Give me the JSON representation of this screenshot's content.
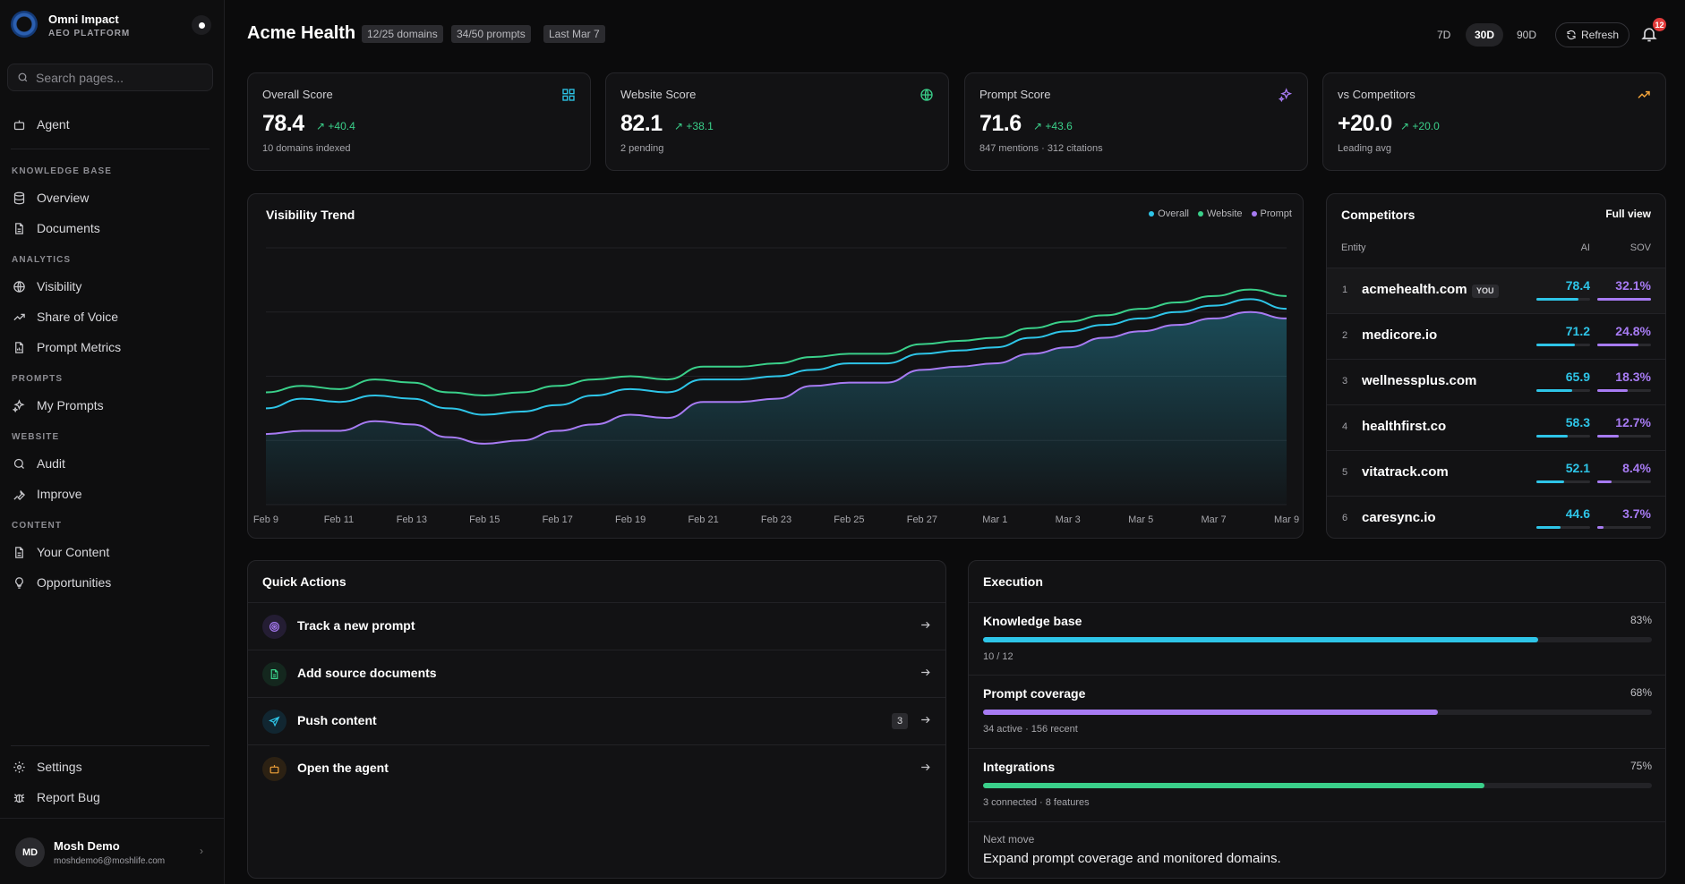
{
  "brand": {
    "name": "Omni Impact",
    "subtitle": "AEO PLATFORM"
  },
  "search": {
    "placeholder": "Search pages..."
  },
  "sidebar": {
    "agent": "Agent",
    "sections": {
      "knowledge_base": "KNOWLEDGE BASE",
      "analytics": "ANALYTICS",
      "prompts": "PROMPTS",
      "website": "WEBSITE",
      "content": "CONTENT"
    },
    "items": {
      "overview": "Overview",
      "documents": "Documents",
      "visibility": "Visibility",
      "share_of_voice": "Share of Voice",
      "prompt_metrics": "Prompt Metrics",
      "my_prompts": "My Prompts",
      "audit": "Audit",
      "improve": "Improve",
      "your_content": "Your Content",
      "opportunities": "Opportunities",
      "settings": "Settings",
      "report_bug": "Report Bug"
    }
  },
  "user": {
    "initials": "MD",
    "name": "Mosh Demo",
    "email": "moshdemo6@moshlife.com"
  },
  "header": {
    "title": "Acme Health",
    "chips": [
      "12/25 domains",
      "34/50 prompts",
      "Last Mar 7"
    ],
    "ranges": [
      "7D",
      "30D",
      "90D"
    ],
    "active_range": "30D",
    "refresh": "Refresh",
    "notifications": "12"
  },
  "stats": [
    {
      "label": "Overall Score",
      "value": "78.4",
      "delta": "+40.4",
      "sub": "10 domains indexed",
      "icon": "grid-icon",
      "color": "#2ec5e8"
    },
    {
      "label": "Website Score",
      "value": "82.1",
      "delta": "+38.1",
      "sub": "2 pending",
      "icon": "globe-icon",
      "color": "#3ad08a"
    },
    {
      "label": "Prompt Score",
      "value": "71.6",
      "delta": "+43.6",
      "sub": "847 mentions · 312 citations",
      "icon": "sparkles-icon",
      "color": "#a77bf3"
    },
    {
      "label": "vs Competitors",
      "value": "+20.0",
      "delta": "+20.0",
      "sub": "Leading avg",
      "icon": "trending-up-icon",
      "color": "#f2a33a"
    }
  ],
  "trend": {
    "title": "Visibility Trend",
    "legend": [
      "Overall",
      "Website",
      "Prompt"
    ]
  },
  "chart_data": {
    "type": "area",
    "x": [
      "Feb 9",
      "Feb 10",
      "Feb 11",
      "Feb 12",
      "Feb 13",
      "Feb 14",
      "Feb 15",
      "Feb 16",
      "Feb 17",
      "Feb 18",
      "Feb 19",
      "Feb 20",
      "Feb 21",
      "Feb 22",
      "Feb 23",
      "Feb 24",
      "Feb 25",
      "Feb 26",
      "Feb 27",
      "Feb 28",
      "Mar 1",
      "Mar 2",
      "Mar 3",
      "Mar 4",
      "Mar 5",
      "Mar 6",
      "Mar 7",
      "Mar 8",
      "Mar 9"
    ],
    "tick_labels": [
      "Feb 9",
      "Feb 11",
      "Feb 13",
      "Feb 15",
      "Feb 17",
      "Feb 19",
      "Feb 21",
      "Feb 23",
      "Feb 25",
      "Feb 27",
      "Mar 1",
      "Mar 3",
      "Mar 5",
      "Mar 7",
      "Mar 9"
    ],
    "ylim": [
      0,
      80
    ],
    "grid": true,
    "legend_position": "top-right",
    "series": [
      {
        "name": "Website",
        "color": "#3ad08a",
        "values": [
          35,
          37,
          36,
          39,
          38,
          35,
          34,
          35,
          37,
          39,
          40,
          39,
          43,
          43,
          44,
          46,
          47,
          47,
          50,
          51,
          52,
          55,
          57,
          59,
          61,
          63,
          65,
          67,
          65
        ]
      },
      {
        "name": "Overall",
        "color": "#2ec5e8",
        "values": [
          30,
          33,
          32,
          34,
          33,
          30,
          28,
          29,
          31,
          34,
          36,
          35,
          39,
          39,
          40,
          42,
          44,
          44,
          47,
          48,
          49,
          52,
          54,
          56,
          58,
          60,
          62,
          64,
          61
        ]
      },
      {
        "name": "Prompt",
        "color": "#a77bf3",
        "values": [
          22,
          23,
          23,
          26,
          25,
          21,
          19,
          20,
          23,
          25,
          28,
          27,
          32,
          32,
          33,
          37,
          38,
          38,
          42,
          43,
          44,
          47,
          49,
          52,
          54,
          56,
          58,
          60,
          58
        ]
      }
    ]
  },
  "competitors": {
    "title": "Competitors",
    "full_view": "Full view",
    "headers": {
      "entity": "Entity",
      "ai": "AI",
      "sov": "SOV"
    },
    "you_label": "YOU",
    "rows": [
      {
        "rank": "1",
        "name": "acmehealth.com",
        "ai": "78.4",
        "sov": "32.1%",
        "ai_val": 78.4,
        "sov_val": 32.1,
        "you": true
      },
      {
        "rank": "2",
        "name": "medicore.io",
        "ai": "71.2",
        "sov": "24.8%",
        "ai_val": 71.2,
        "sov_val": 24.8
      },
      {
        "rank": "3",
        "name": "wellnessplus.com",
        "ai": "65.9",
        "sov": "18.3%",
        "ai_val": 65.9,
        "sov_val": 18.3
      },
      {
        "rank": "4",
        "name": "healthfirst.co",
        "ai": "58.3",
        "sov": "12.7%",
        "ai_val": 58.3,
        "sov_val": 12.7
      },
      {
        "rank": "5",
        "name": "vitatrack.com",
        "ai": "52.1",
        "sov": "8.4%",
        "ai_val": 52.1,
        "sov_val": 8.4
      },
      {
        "rank": "6",
        "name": "caresync.io",
        "ai": "44.6",
        "sov": "3.7%",
        "ai_val": 44.6,
        "sov_val": 3.7
      }
    ]
  },
  "quick_actions": {
    "title": "Quick Actions",
    "items": [
      {
        "label": "Track a new prompt",
        "icon": "target-icon",
        "color": "#a77bf3",
        "bg": "#241d33"
      },
      {
        "label": "Add source documents",
        "icon": "document-icon",
        "color": "#3ad08a",
        "bg": "#14271e"
      },
      {
        "label": "Push content",
        "icon": "send-icon",
        "color": "#2ec5e8",
        "bg": "#112631",
        "count": "3"
      },
      {
        "label": "Open the agent",
        "icon": "bot-icon",
        "color": "#f2a33a",
        "bg": "#2c2113"
      }
    ]
  },
  "execution": {
    "title": "Execution",
    "items": [
      {
        "label": "Knowledge base",
        "pct": "83%",
        "progress": 0.83,
        "sub": "10 / 12",
        "color": "#2ec5e8"
      },
      {
        "label": "Prompt coverage",
        "pct": "68%",
        "progress": 0.68,
        "sub": "34 active · 156 recent",
        "color": "#a77bf3"
      },
      {
        "label": "Integrations",
        "pct": "75%",
        "progress": 0.75,
        "sub": "3 connected · 8 features",
        "color": "#3ad08a"
      }
    ],
    "next_label": "Next move",
    "next_text": "Expand prompt coverage and monitored domains."
  }
}
